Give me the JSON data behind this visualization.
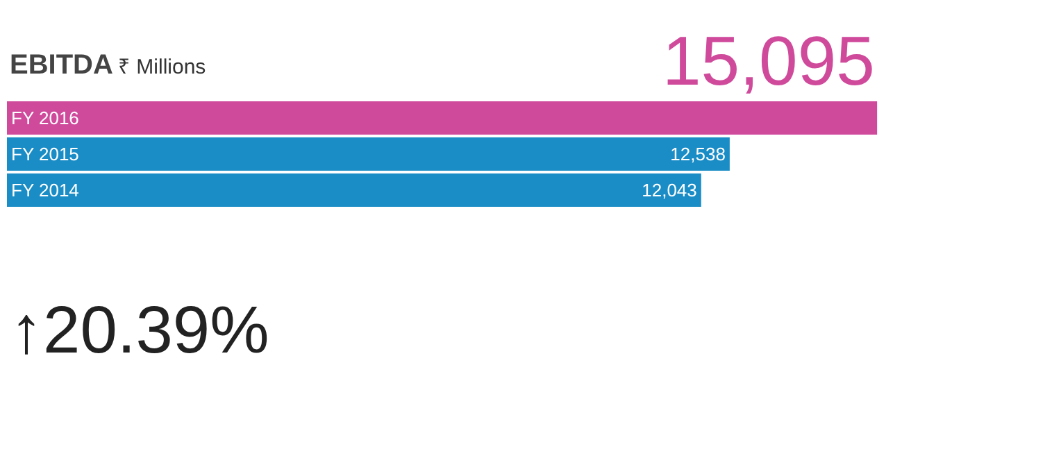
{
  "chart_data": {
    "type": "bar",
    "orientation": "horizontal",
    "title": "EBITDA",
    "subtitle": "₹ Millions",
    "categories": [
      "FY 2016",
      "FY 2015",
      "FY 2014"
    ],
    "values": [
      15095,
      12538,
      12043
    ],
    "colors": [
      "#d04a9c",
      "#1a8cc6",
      "#1a8cc6"
    ],
    "value_labels": [
      "15,095",
      "12,538",
      "12,043"
    ],
    "annotations": [
      "↑20.39%"
    ],
    "legend": false
  }
}
